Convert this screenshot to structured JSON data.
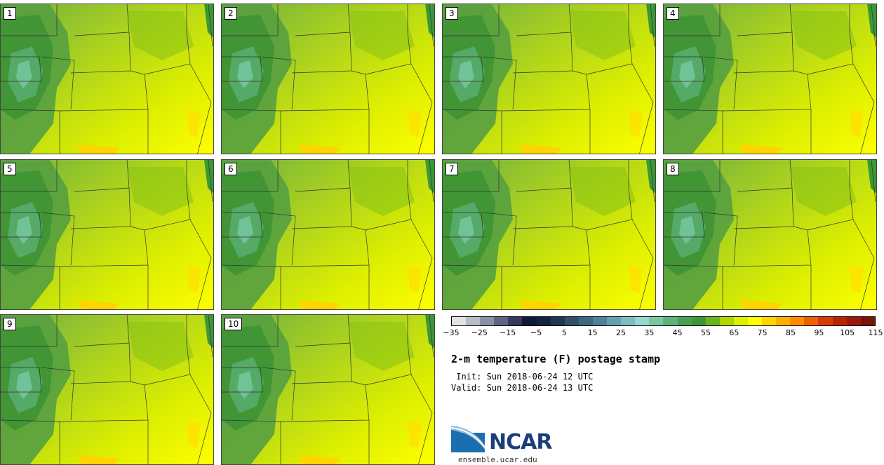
{
  "panels": [
    {
      "label": "1"
    },
    {
      "label": "2"
    },
    {
      "label": "3"
    },
    {
      "label": "4"
    },
    {
      "label": "5"
    },
    {
      "label": "6"
    },
    {
      "label": "7"
    },
    {
      "label": "8"
    },
    {
      "label": "9"
    },
    {
      "label": "10"
    }
  ],
  "colorbar": {
    "colors": [
      "#e0e2e8",
      "#b8bcc8",
      "#8a90a8",
      "#5e6686",
      "#333c5c",
      "#0e1a38",
      "#14243e",
      "#1e3850",
      "#2e5068",
      "#3e6880",
      "#508098",
      "#66a0ae",
      "#7ebcc0",
      "#96d8d0",
      "#78c8a4",
      "#5cb47c",
      "#48a050",
      "#3c9834",
      "#6ab220",
      "#b0d600",
      "#ddee00",
      "#ffff00",
      "#ffd400",
      "#ffb000",
      "#ff8c00",
      "#ee6000",
      "#d83a00",
      "#bc2400",
      "#9c1808",
      "#7a1408"
    ],
    "tick_labels": [
      "-35",
      "-25",
      "-15",
      "-5",
      "5",
      "15",
      "25",
      "35",
      "45",
      "55",
      "65",
      "75",
      "85",
      "95",
      "105",
      "115"
    ]
  },
  "title": "2-m temperature (F) postage stamp",
  "init": " Init: Sun 2018-06-24 12 UTC",
  "valid": "Valid: Sun 2018-06-24 13 UTC",
  "logo_text": "NCAR",
  "url": "ensemble.ucar.edu"
}
